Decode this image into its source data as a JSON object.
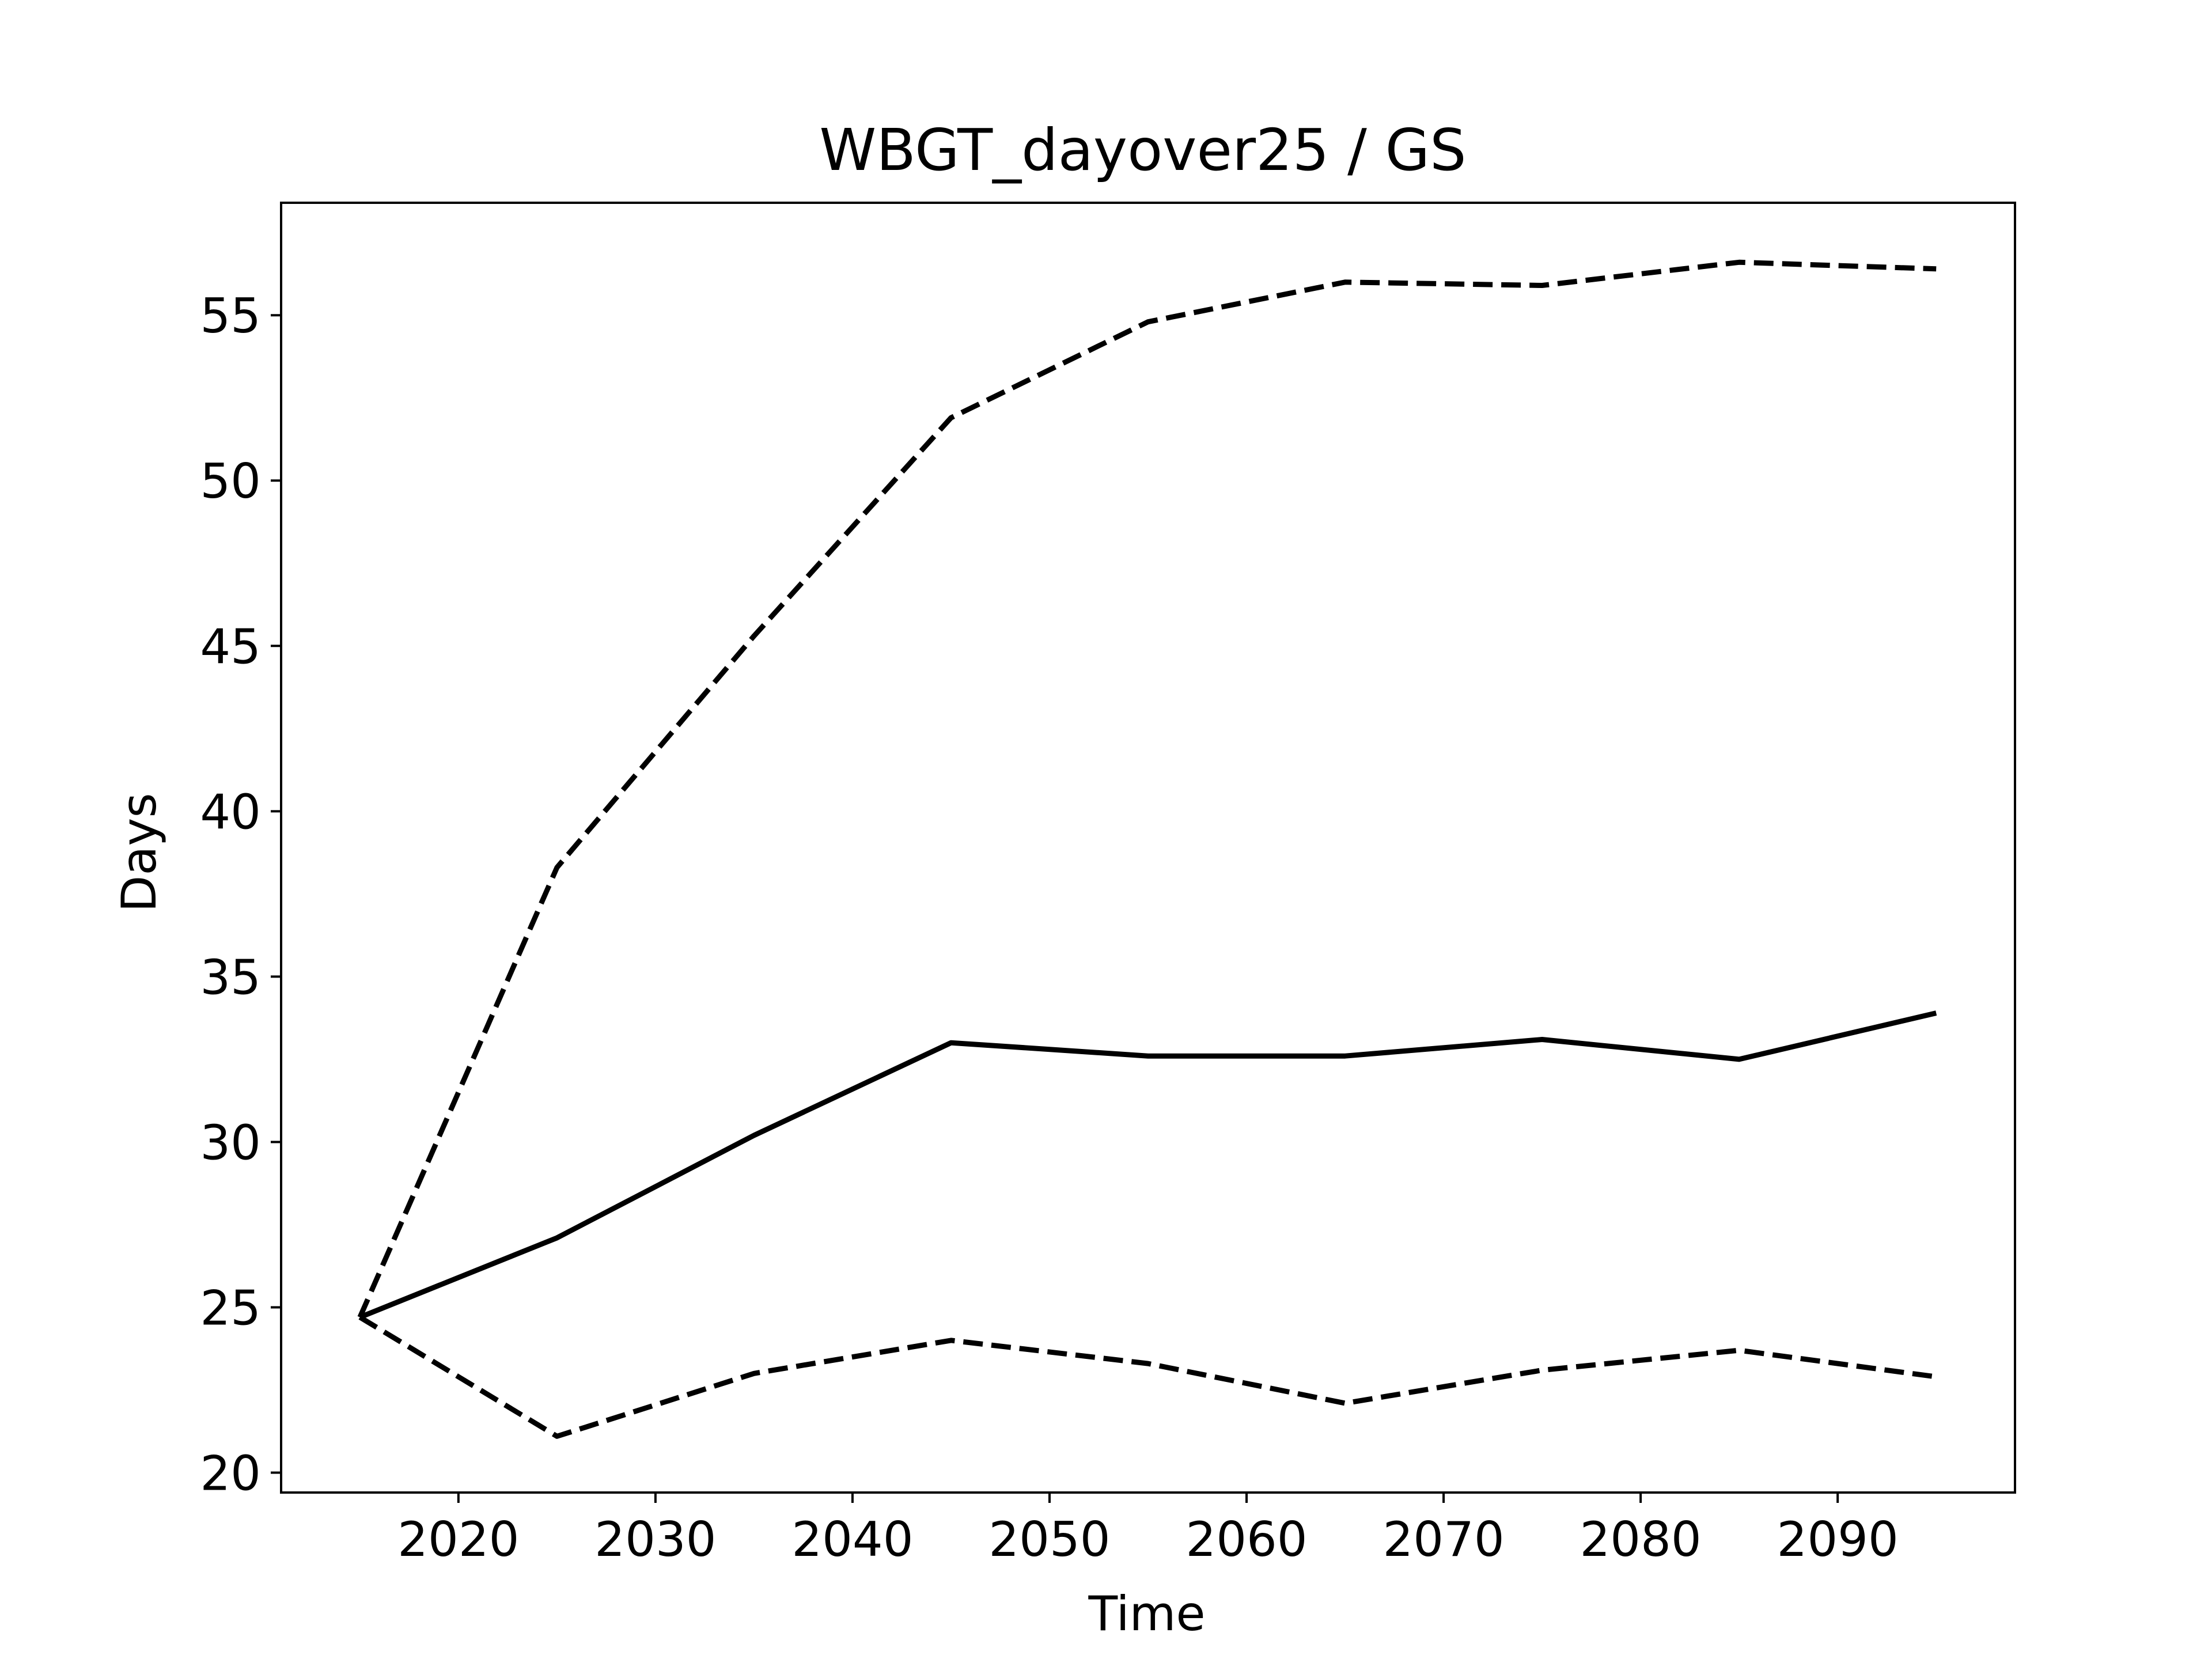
{
  "chart_data": {
    "type": "line",
    "title": "WBGT_dayover25 / GS",
    "xlabel": "Time",
    "ylabel": "Days",
    "x": [
      2015,
      2025,
      2035,
      2045,
      2055,
      2065,
      2075,
      2085,
      2095
    ],
    "xlim": [
      2011,
      2099
    ],
    "ylim": [
      19.4,
      58.4
    ],
    "xticks": [
      2020,
      2030,
      2040,
      2050,
      2060,
      2070,
      2080,
      2090
    ],
    "yticks": [
      20,
      25,
      30,
      35,
      40,
      45,
      50,
      55
    ],
    "grid": false,
    "legend": "none",
    "series": [
      {
        "style": "dashed",
        "color": "#000000",
        "values": [
          24.7,
          38.3,
          45.3,
          51.9,
          54.8,
          56.0,
          55.9,
          56.6,
          56.4
        ]
      },
      {
        "style": "solid",
        "color": "#000000",
        "values": [
          24.7,
          27.1,
          30.2,
          33.0,
          32.6,
          32.6,
          33.1,
          32.5,
          33.9
        ]
      },
      {
        "style": "dashed",
        "color": "#000000",
        "values": [
          24.7,
          21.1,
          23.0,
          24.0,
          23.3,
          22.1,
          23.1,
          23.7,
          22.9
        ]
      }
    ]
  }
}
